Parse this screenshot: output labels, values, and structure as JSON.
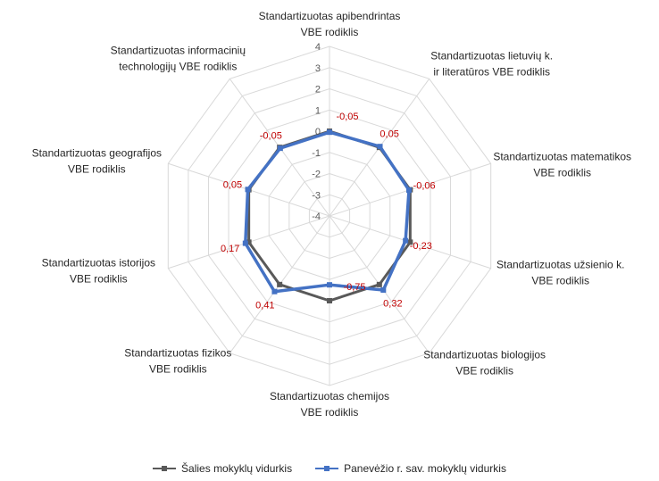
{
  "chart_data": {
    "type": "radar",
    "categories": [
      [
        "Standartizuotas apibendrintas",
        "VBE rodiklis"
      ],
      [
        "Standartizuotas lietuvių k.",
        "ir literatūros VBE rodiklis"
      ],
      [
        "Standartizuotas matematikos",
        "VBE rodiklis"
      ],
      [
        "Standartizuotas užsienio k.",
        "VBE rodiklis"
      ],
      [
        "Standartizuotas biologijos",
        "VBE rodiklis"
      ],
      [
        "Standartizuotas chemijos",
        "VBE rodiklis"
      ],
      [
        "Standartizuotas fizikos",
        "VBE rodiklis"
      ],
      [
        "Standartizuotas istorijos",
        "VBE rodiklis"
      ],
      [
        "Standartizuotas geografijos",
        "VBE rodiklis"
      ],
      [
        "Standartizuotas informacinių",
        "technologijų VBE rodiklis"
      ]
    ],
    "rticks": [
      "-4",
      "-3",
      "-2",
      "-1",
      "0",
      "1",
      "2",
      "3",
      "4"
    ],
    "rlim": [
      -4,
      4
    ],
    "series": [
      {
        "name": "Šalies mokyklų vidurkis",
        "color": "#595959",
        "values": [
          0,
          0,
          0,
          0,
          0,
          0,
          0,
          0,
          0,
          0
        ]
      },
      {
        "name": "Panevėžio r. sav. mokyklų vidurkis",
        "color": "#4472c4",
        "values": [
          -0.05,
          0.05,
          -0.06,
          -0.23,
          0.32,
          -0.75,
          0.41,
          0.17,
          0.05,
          -0.05
        ]
      }
    ],
    "data_labels": [
      "-0,05",
      "0,05",
      "-0,06",
      "-0,23",
      "0,32",
      "-0,75",
      "0,41",
      "0,17",
      "0,05",
      "-0,05"
    ],
    "grid": true,
    "legend_position": "bottom"
  }
}
